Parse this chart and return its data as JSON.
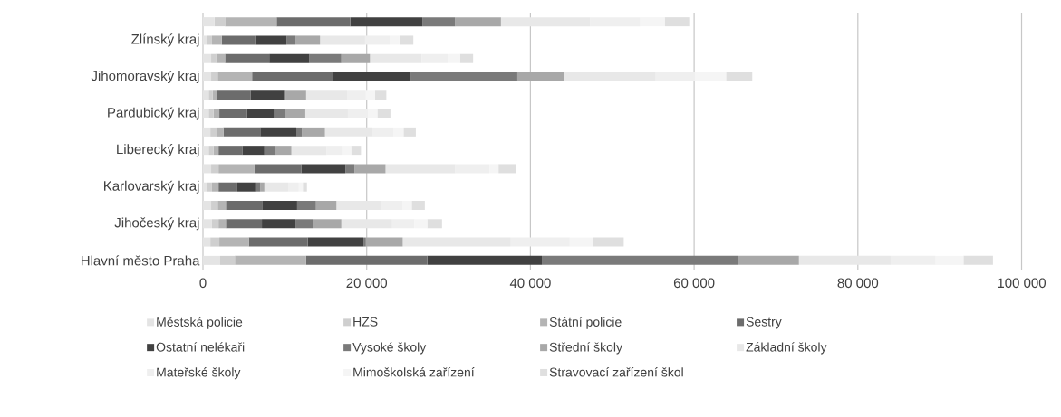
{
  "chart_data": {
    "type": "bar",
    "orientation": "horizontal",
    "stacked": true,
    "grid": "x",
    "legend": "bottom",
    "categories": [
      null,
      "Zlínský kraj",
      null,
      "Jihomoravský kraj",
      null,
      "Pardubický kraj",
      null,
      "Liberecký kraj",
      null,
      "Karlovarský kraj",
      null,
      "Jihočeský kraj",
      null,
      "Hlavní město Praha"
    ],
    "xlim": [
      0,
      100000
    ],
    "xticks": [
      {
        "value": 0,
        "label": "0"
      },
      {
        "value": 20000,
        "label": "20 000"
      },
      {
        "value": 40000,
        "label": "40 000"
      },
      {
        "value": 60000,
        "label": "60 000"
      },
      {
        "value": 80000,
        "label": "80 000"
      },
      {
        "value": 100000,
        "label": "100 000"
      }
    ],
    "series": [
      {
        "name": "Městská policie",
        "color": "#e4e4e4",
        "values": [
          1400,
          500,
          1000,
          1000,
          700,
          700,
          900,
          700,
          1000,
          500,
          1000,
          1100,
          900,
          2100
        ]
      },
      {
        "name": "HZS",
        "color": "#cfcfcf",
        "values": [
          1300,
          600,
          600,
          800,
          500,
          600,
          800,
          600,
          900,
          600,
          800,
          800,
          1100,
          1800
        ]
      },
      {
        "name": "Státní policie",
        "color": "#b4b4b4",
        "values": [
          6300,
          1200,
          1100,
          4200,
          500,
          700,
          800,
          600,
          4400,
          800,
          1000,
          900,
          3600,
          8700
        ]
      },
      {
        "name": "Sestry",
        "color": "#6c6c6c",
        "values": [
          9000,
          4100,
          5400,
          9900,
          4100,
          3400,
          4500,
          2900,
          5700,
          2300,
          4500,
          4400,
          7200,
          14800
        ]
      },
      {
        "name": "Ostatní nelékaři",
        "color": "#414141",
        "values": [
          8800,
          3800,
          4900,
          9500,
          4100,
          3300,
          4400,
          2700,
          5400,
          2200,
          4200,
          4100,
          6800,
          14000
        ]
      },
      {
        "name": "Vysoké školy",
        "color": "#7a7a7a",
        "values": [
          4000,
          1100,
          3900,
          13000,
          200,
          1300,
          700,
          1300,
          1100,
          600,
          2300,
          2200,
          300,
          24000
        ]
      },
      {
        "name": "Střední školy",
        "color": "#a8a8a8",
        "values": [
          5600,
          3000,
          3500,
          5700,
          2500,
          2500,
          2800,
          2000,
          3800,
          500,
          2500,
          3400,
          4500,
          7400
        ]
      },
      {
        "name": "Základní školy",
        "color": "#e8e8e8",
        "values": [
          10900,
          5500,
          6300,
          11200,
          5000,
          5200,
          5800,
          4300,
          8500,
          2900,
          5500,
          6200,
          13200,
          11200
        ]
      },
      {
        "name": "Mateřské školy",
        "color": "#efefef",
        "values": [
          6100,
          3000,
          3200,
          4800,
          2300,
          2500,
          2600,
          2000,
          4200,
          1300,
          2600,
          2700,
          7200,
          5500
        ]
      },
      {
        "name": "Mimoškolská zařízení",
        "color": "#f5f5f5",
        "values": [
          3000,
          1200,
          1500,
          3800,
          1100,
          1100,
          1200,
          1000,
          1100,
          500,
          1100,
          1600,
          2800,
          3400
        ]
      },
      {
        "name": "Stravovací zařízení škol",
        "color": "#dfdfdf",
        "values": [
          3000,
          1700,
          1600,
          3200,
          1400,
          1600,
          1500,
          1200,
          2100,
          500,
          1600,
          1800,
          3800,
          3600
        ]
      }
    ]
  }
}
